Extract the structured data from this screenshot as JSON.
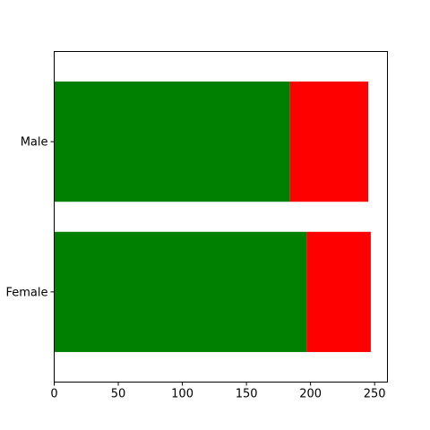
{
  "chart_data": {
    "type": "bar",
    "orientation": "horizontal",
    "stacked": true,
    "categories": [
      "Female",
      "Male"
    ],
    "series": [
      {
        "values": [
          197,
          184
        ],
        "color": "#008000"
      },
      {
        "values": [
          50,
          61
        ],
        "color": "#ff0000"
      }
    ],
    "xlim": [
      0,
      260
    ],
    "xticks": [
      0,
      50,
      100,
      150,
      200,
      250
    ],
    "title": "",
    "xlabel": "",
    "ylabel": "",
    "grid": false,
    "legend": "none"
  }
}
